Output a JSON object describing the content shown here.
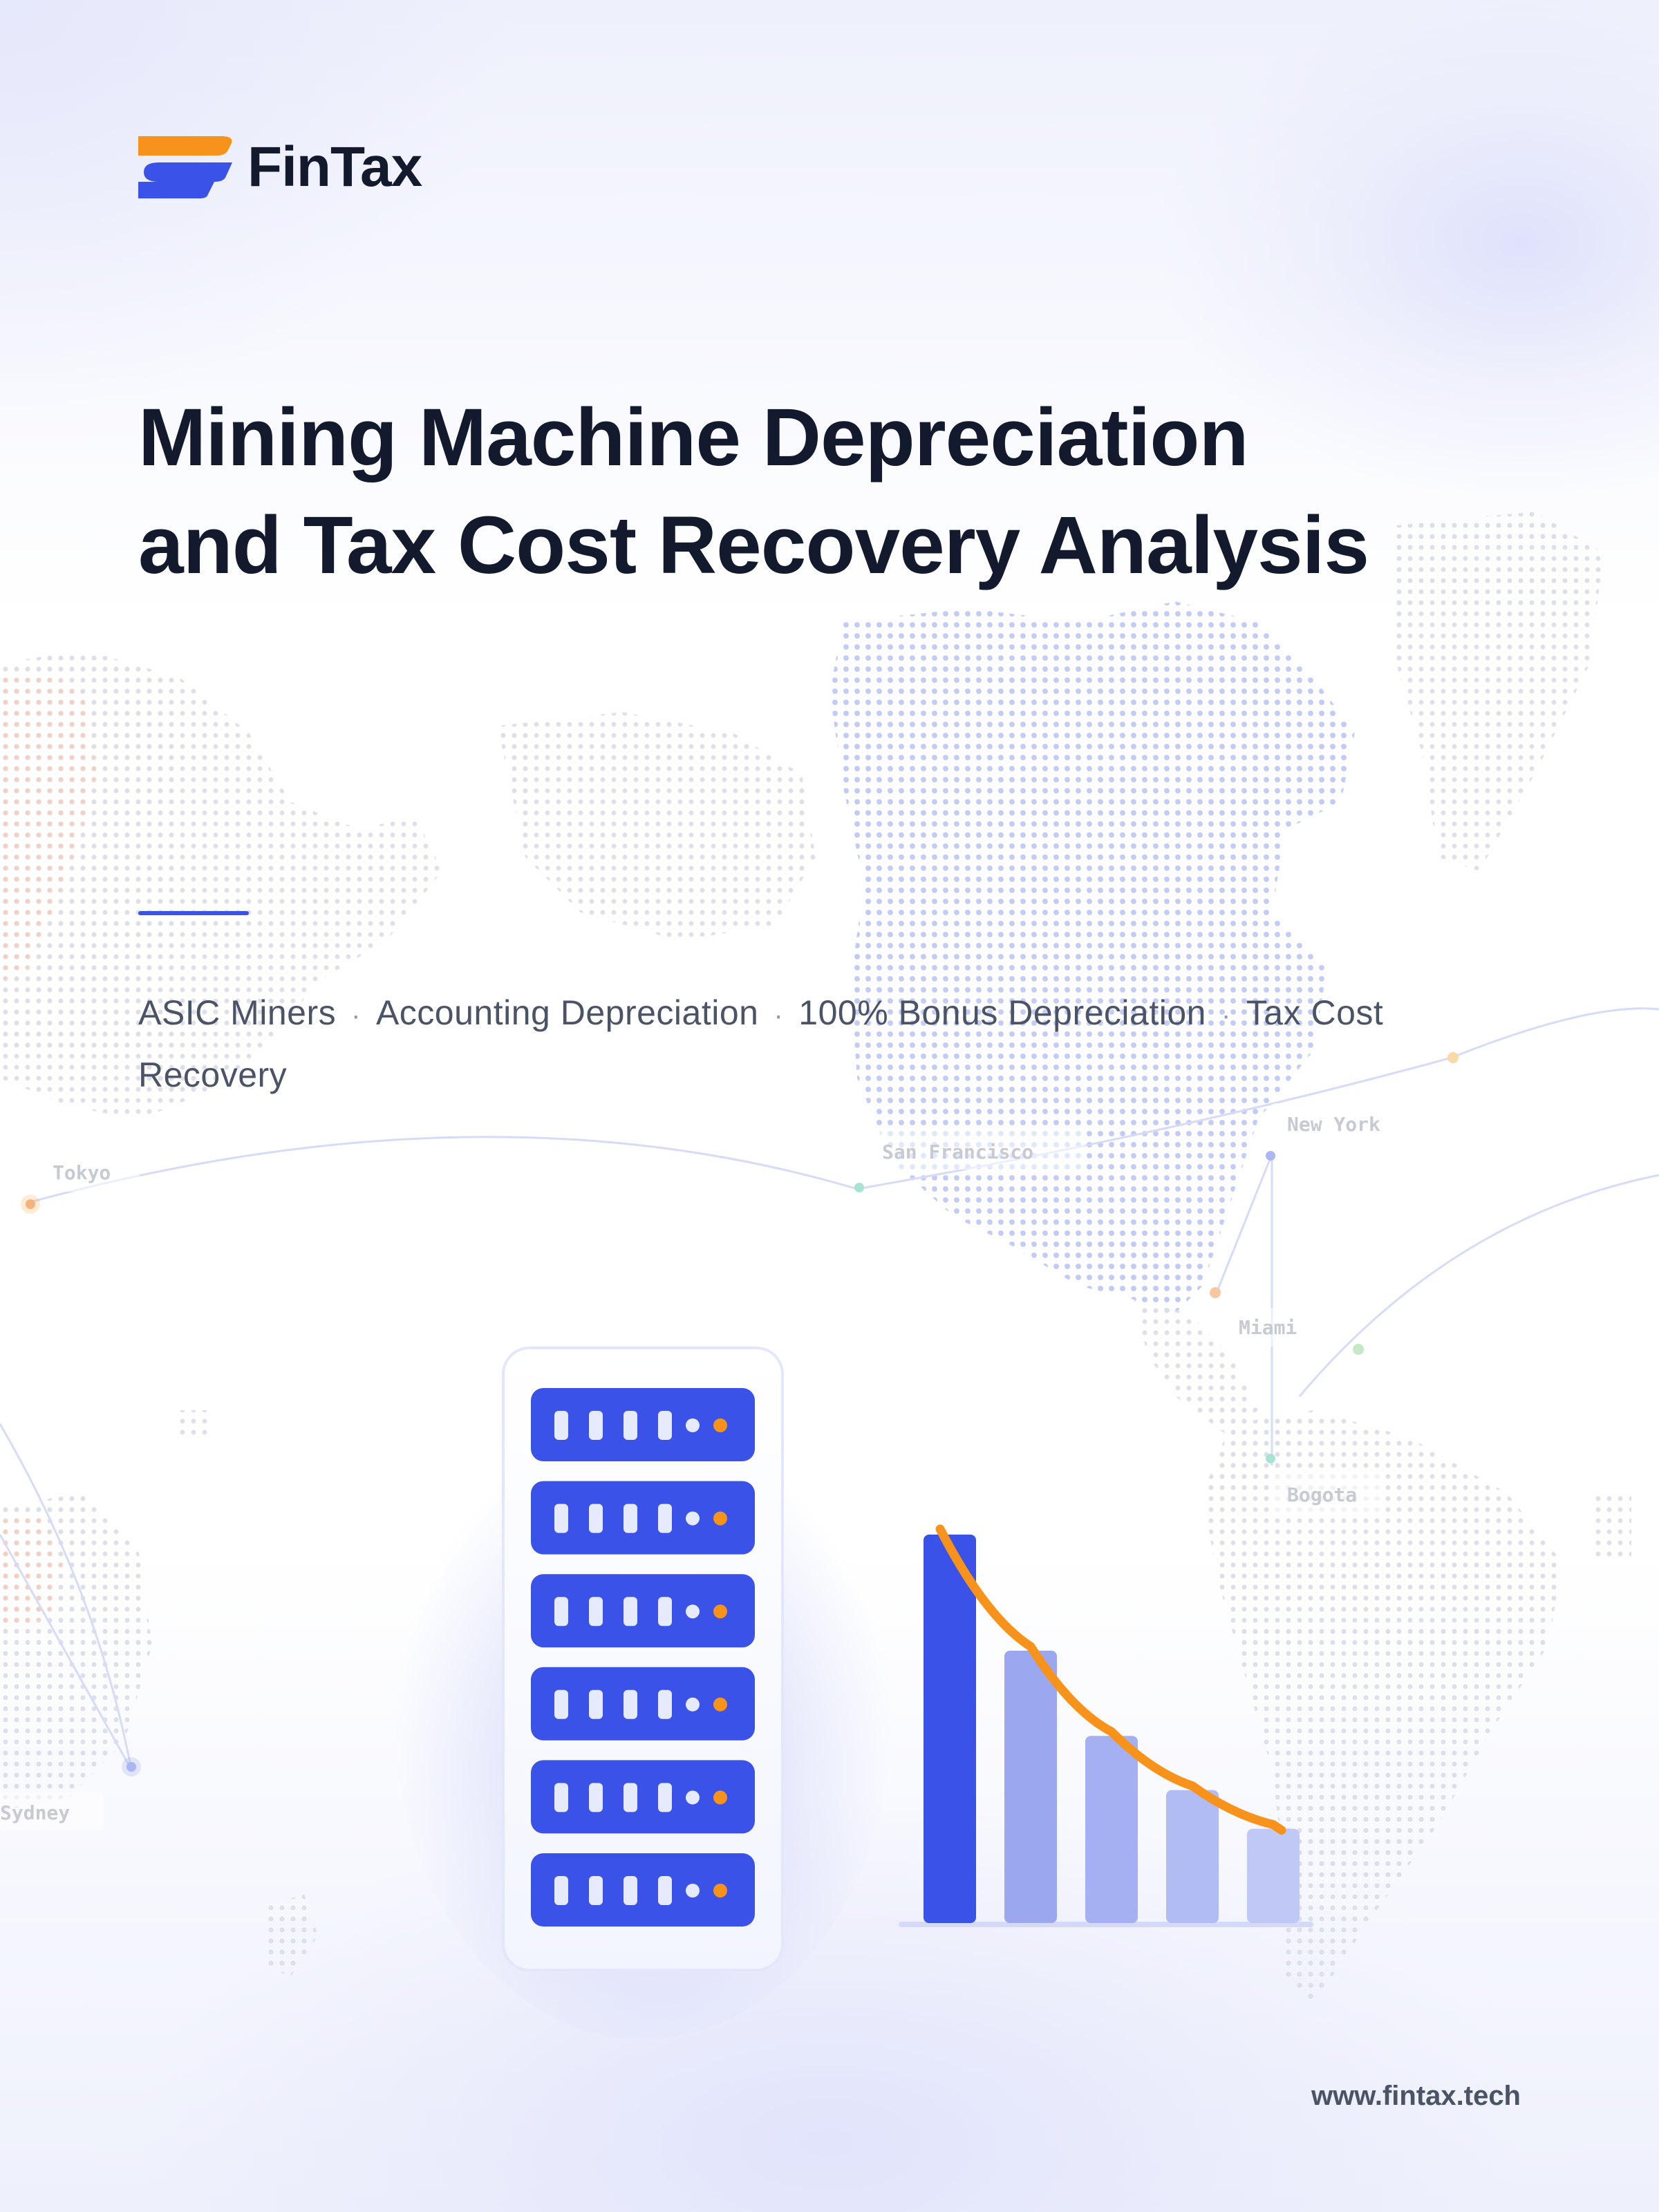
{
  "brand": {
    "name": "FinTax",
    "colors": {
      "orange": "#f7931a",
      "blue": "#3a52e8",
      "dark": "#141a2e"
    }
  },
  "title": {
    "line1": "Mining Machine Depreciation",
    "line2": "and Tax Cost Recovery Analysis"
  },
  "tags": [
    "ASIC Miners",
    "Accounting Depreciation",
    "100% Bonus Depreciation",
    "Tax Cost",
    "Recovery"
  ],
  "tag_separator": "·",
  "map_labels": {
    "tokyo": "Tokyo",
    "san_francisco": "San Francisco",
    "new_york": "New York",
    "miami": "Miami",
    "bogota": "Bogota",
    "sydney": "Sydney"
  },
  "server_rack": {
    "units": 6,
    "icon": "server-rack-icon"
  },
  "depreciation_chart": {
    "type": "bar",
    "values": [
      100,
      70,
      48,
      34,
      24
    ],
    "bar_colors": [
      "#3a52e8",
      "#9ba8f0",
      "#a5b0f2",
      "#b2bcf4",
      "#c0c8f6"
    ],
    "trend_color": "#f7931a"
  },
  "footer": {
    "url": "www.fintax.tech"
  }
}
